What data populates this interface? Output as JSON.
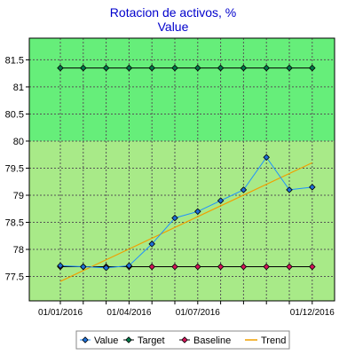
{
  "chart_data": {
    "type": "line",
    "title": "Rotacion de activos, %",
    "subtitle": "Value",
    "x": [
      "2016-01",
      "2016-02",
      "2016-03",
      "2016-04",
      "2016-05",
      "2016-06",
      "2016-07",
      "2016-08",
      "2016-09",
      "2016-10",
      "2016-11",
      "2016-12"
    ],
    "x_tick_labels": [
      {
        "x": "2016-01",
        "label": "01/01/2016"
      },
      {
        "x": "2016-04",
        "label": "01/04/2016"
      },
      {
        "x": "2016-07",
        "label": "01/07/2016"
      },
      {
        "x": "2016-12",
        "label": "01/12/2016"
      }
    ],
    "ylim": [
      77.05,
      81.9
    ],
    "y_ticks": [
      77.5,
      78,
      78.5,
      79,
      79.5,
      80,
      80.5,
      81,
      81.5
    ],
    "target_zone_from": 80,
    "grid": true,
    "legend_position": "bottom",
    "series": [
      {
        "name": "Value",
        "color": "#1e90ff",
        "marker_color": "#1e6fd9",
        "marker": "diamond",
        "values": [
          77.7,
          77.68,
          77.66,
          77.7,
          78.1,
          78.58,
          78.7,
          78.9,
          79.1,
          79.7,
          79.1,
          79.15
        ]
      },
      {
        "name": "Target",
        "color": "#000000",
        "marker_color": "#007a4a",
        "marker": "diamond",
        "values": [
          81.35,
          81.35,
          81.35,
          81.35,
          81.35,
          81.35,
          81.35,
          81.35,
          81.35,
          81.35,
          81.35,
          81.35
        ]
      },
      {
        "name": "Baseline",
        "color": "#000000",
        "marker_color": "#d4145a",
        "marker": "diamond",
        "values": [
          77.68,
          77.68,
          77.68,
          77.68,
          77.68,
          77.68,
          77.68,
          77.68,
          77.68,
          77.68,
          77.68,
          77.68
        ]
      },
      {
        "name": "Trend",
        "color": "#f0a000",
        "marker": "none",
        "line_from": [
          1,
          77.41
        ],
        "line_to": [
          12,
          79.6
        ]
      }
    ],
    "colors": {
      "upper_zone": "#66ee7a",
      "lower_zone": "#a8ea88",
      "grid": "#555555"
    }
  }
}
